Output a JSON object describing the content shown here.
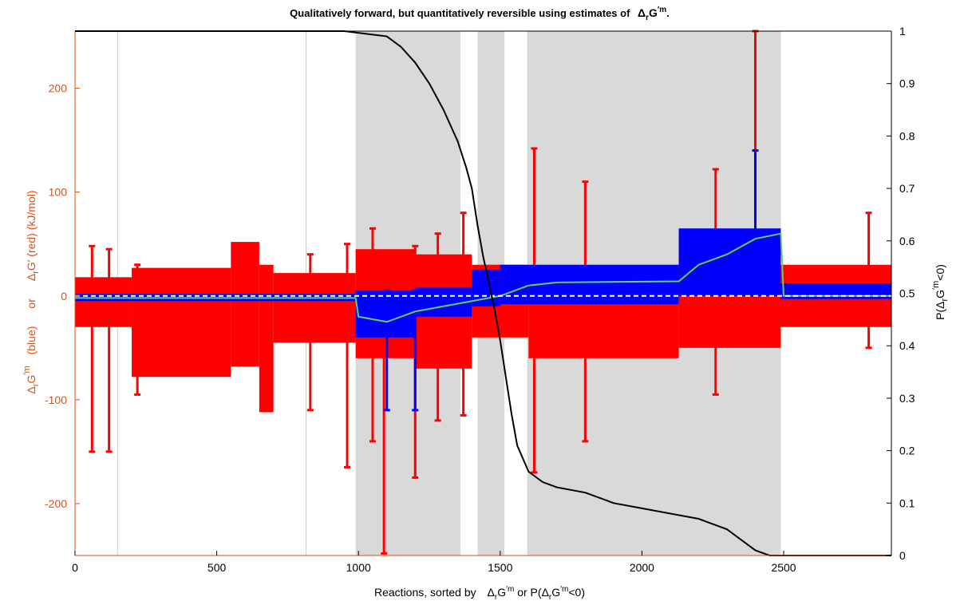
{
  "chart_data": {
    "type": "line",
    "title": "Qualitatively forward, but quantitatively reversible using estimates of",
    "title_symbol": "Δ",
    "title_sub": "r",
    "title_tail": "G",
    "title_sup": "′m",
    "title_end": ".",
    "xlabel": {
      "part1": "Reactions, sorted by",
      "delta1": "Δ",
      "sub1": "r",
      "g1": "G",
      "sup1": "′m",
      "part2": " or P(",
      "delta2": "Δ",
      "sub2": "r",
      "g2": "G",
      "sup2": "′m",
      "part3": "<0)"
    },
    "ylabel_left": {
      "line1_delta": "Δ",
      "line1_sub": "r",
      "line1_g": "G",
      "line1_sup": "′m",
      "line1_rest": "(blue)",
      "or": "or",
      "line2_delta": "Δ",
      "line2_sub": "r",
      "line2_g": "G′ (red) (kJ/mol)"
    },
    "ylabel_right": {
      "prefix": "P(",
      "delta": "Δ",
      "sub": "r",
      "g": "G",
      "sup": "′m",
      "suffix": "<0)"
    },
    "xlim": [
      0,
      2880
    ],
    "ylim_left": [
      -250,
      255
    ],
    "ylim_right": [
      0,
      1
    ],
    "xticks": [
      "0",
      "500",
      "1000",
      "1500",
      "2000",
      "2500"
    ],
    "xtick_values": [
      0,
      500,
      1000,
      1500,
      2000,
      2500
    ],
    "yticks_left": [
      "-200",
      "-100",
      "0",
      "100",
      "200"
    ],
    "ytick_values_left": [
      -200,
      -100,
      0,
      100,
      200
    ],
    "yticks_right": [
      "0",
      "0.1",
      "0.2",
      "0.3",
      "0.4",
      "0.5",
      "0.6",
      "0.7",
      "0.8",
      "0.9",
      "1"
    ],
    "ytick_values_right": [
      0,
      0.1,
      0.2,
      0.3,
      0.4,
      0.5,
      0.6,
      0.7,
      0.8,
      0.9,
      1
    ],
    "shaded_regions": [
      [
        990,
        1360
      ],
      [
        1420,
        1515
      ],
      [
        1595,
        2490
      ]
    ],
    "vertical_gridlines": [
      150,
      815
    ],
    "probability_curve": {
      "x": [
        0,
        950,
        1100,
        1150,
        1200,
        1250,
        1300,
        1350,
        1380,
        1400,
        1420,
        1440,
        1460,
        1480,
        1500,
        1520,
        1540,
        1560,
        1600,
        1650,
        1700,
        1800,
        1900,
        2000,
        2100,
        2200,
        2300,
        2350,
        2400,
        2450,
        2500,
        2880
      ],
      "y": [
        1.0,
        1.0,
        0.99,
        0.97,
        0.94,
        0.9,
        0.85,
        0.79,
        0.74,
        0.7,
        0.63,
        0.57,
        0.52,
        0.47,
        0.41,
        0.34,
        0.27,
        0.21,
        0.16,
        0.14,
        0.13,
        0.12,
        0.1,
        0.09,
        0.08,
        0.07,
        0.05,
        0.03,
        0.01,
        0.0,
        0.0,
        0.0
      ]
    },
    "red_bands": [
      {
        "x0": 0,
        "x1": 200,
        "lo": -30,
        "hi": 18
      },
      {
        "x0": 200,
        "x1": 550,
        "lo": -78,
        "hi": 27
      },
      {
        "x0": 550,
        "x1": 650,
        "lo": -68,
        "hi": 52
      },
      {
        "x0": 650,
        "x1": 700,
        "lo": -112,
        "hi": 30
      },
      {
        "x0": 700,
        "x1": 990,
        "lo": -45,
        "hi": 22
      },
      {
        "x0": 990,
        "x1": 1200,
        "lo": -60,
        "hi": 45
      },
      {
        "x0": 1200,
        "x1": 1400,
        "lo": -70,
        "hi": 40
      },
      {
        "x0": 1400,
        "x1": 1600,
        "lo": -40,
        "hi": 30
      },
      {
        "x0": 1600,
        "x1": 2130,
        "lo": -60,
        "hi": 25
      },
      {
        "x0": 2130,
        "x1": 2490,
        "lo": -50,
        "hi": 60
      },
      {
        "x0": 2490,
        "x1": 2880,
        "lo": -30,
        "hi": 30
      }
    ],
    "red_spikes": [
      {
        "x": 60,
        "lo": -150,
        "hi": 48
      },
      {
        "x": 120,
        "lo": -150,
        "hi": 45
      },
      {
        "x": 220,
        "lo": -95,
        "hi": 30
      },
      {
        "x": 830,
        "lo": -110,
        "hi": 40
      },
      {
        "x": 960,
        "lo": -165,
        "hi": 50
      },
      {
        "x": 1050,
        "lo": -140,
        "hi": 65
      },
      {
        "x": 1090,
        "lo": -248,
        "hi": 40
      },
      {
        "x": 1200,
        "lo": -175,
        "hi": 48
      },
      {
        "x": 1280,
        "lo": -120,
        "hi": 60
      },
      {
        "x": 1370,
        "lo": -115,
        "hi": 80
      },
      {
        "x": 1620,
        "lo": -170,
        "hi": 142
      },
      {
        "x": 1800,
        "lo": -140,
        "hi": 110
      },
      {
        "x": 2260,
        "lo": -95,
        "hi": 122
      },
      {
        "x": 2400,
        "lo": -40,
        "hi": 255
      },
      {
        "x": 2800,
        "lo": -50,
        "hi": 80
      }
    ],
    "blue_bands": [
      {
        "x0": 0,
        "x1": 990,
        "lo": -5,
        "hi": 2
      },
      {
        "x0": 990,
        "x1": 1200,
        "lo": -40,
        "hi": 5
      },
      {
        "x0": 1200,
        "x1": 1400,
        "lo": -20,
        "hi": 8
      },
      {
        "x0": 1400,
        "x1": 1500,
        "lo": -10,
        "hi": 25
      },
      {
        "x0": 1500,
        "x1": 2130,
        "lo": -8,
        "hi": 30
      },
      {
        "x0": 2130,
        "x1": 2490,
        "lo": 0,
        "hi": 65
      },
      {
        "x0": 2490,
        "x1": 2880,
        "lo": -3,
        "hi": 12
      }
    ],
    "blue_spikes": [
      {
        "x": 1100,
        "lo": -110,
        "hi": 5
      },
      {
        "x": 1200,
        "lo": -110,
        "hi": 5
      },
      {
        "x": 2400,
        "lo": 0,
        "hi": 140
      }
    ],
    "green_median": {
      "x": [
        0,
        990,
        1000,
        1100,
        1200,
        1300,
        1400,
        1500,
        1600,
        1700,
        2130,
        2200,
        2300,
        2400,
        2490,
        2500,
        2880
      ],
      "y": [
        -2,
        -2,
        -20,
        -25,
        -15,
        -10,
        -5,
        0,
        10,
        13,
        14,
        30,
        40,
        55,
        60,
        0,
        0
      ]
    },
    "colors": {
      "red": "#ff0000",
      "blue": "#0000ff",
      "green": "#5fd35f",
      "shade": "#d9d9d9",
      "curve": "#000000",
      "left_axis": "#d95319",
      "zero_line": "#ffffff"
    }
  }
}
